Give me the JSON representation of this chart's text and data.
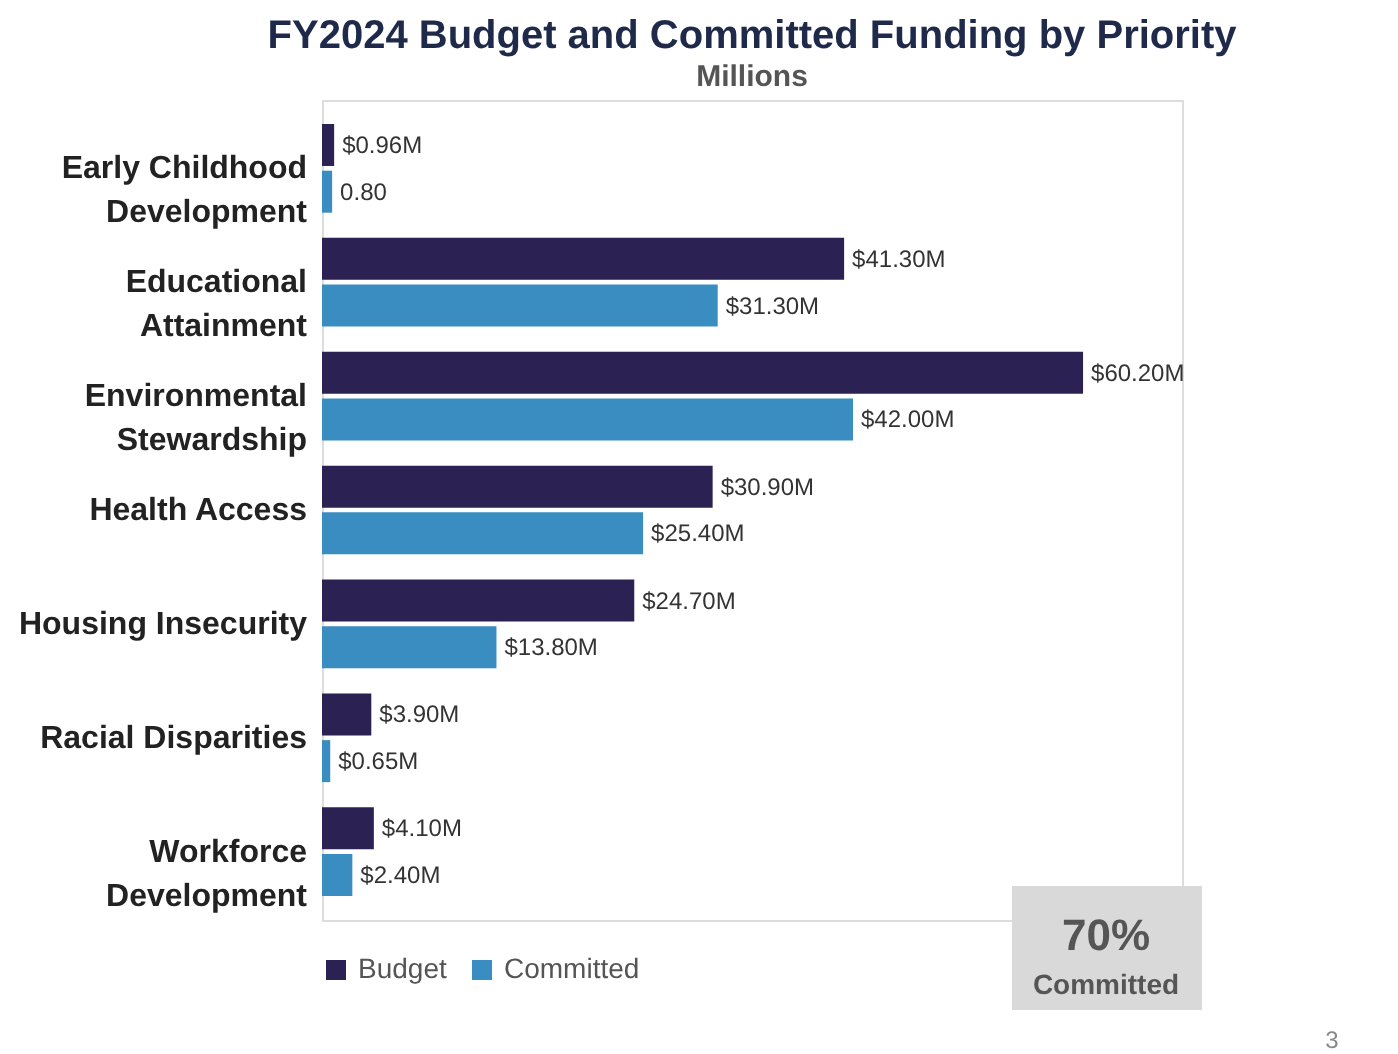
{
  "chart_data": {
    "type": "bar",
    "orientation": "horizontal",
    "title": "FY2024 Budget and Committed Funding by Priority",
    "subtitle": "Millions",
    "categories": [
      "Early Childhood\nDevelopment",
      "Educational\nAttainment",
      "Environmental\nStewardship",
      "Health Access",
      "Housing Insecurity",
      "Racial Disparities",
      "Workforce\nDevelopment"
    ],
    "series": [
      {
        "name": "Budget",
        "color": "#2b2152",
        "values": [
          0.96,
          41.3,
          60.2,
          30.9,
          24.7,
          3.9,
          4.1
        ],
        "value_labels": [
          "$0.96M",
          "$41.30M",
          "$60.20M",
          "$30.90M",
          "$24.70M",
          "$3.90M",
          "$4.10M"
        ]
      },
      {
        "name": "Committed",
        "color": "#3a8dc1",
        "values": [
          0.8,
          31.3,
          42.0,
          25.4,
          13.8,
          0.65,
          2.4
        ],
        "value_labels": [
          "0.80",
          "$31.30M",
          "$42.00M",
          "$25.40M",
          "$13.80M",
          "$0.65M",
          "$2.40M"
        ]
      }
    ],
    "legend": "bottom",
    "grid": false,
    "tick_labels": "y",
    "annotations": [
      "70%",
      "Committed",
      "3"
    ]
  }
}
